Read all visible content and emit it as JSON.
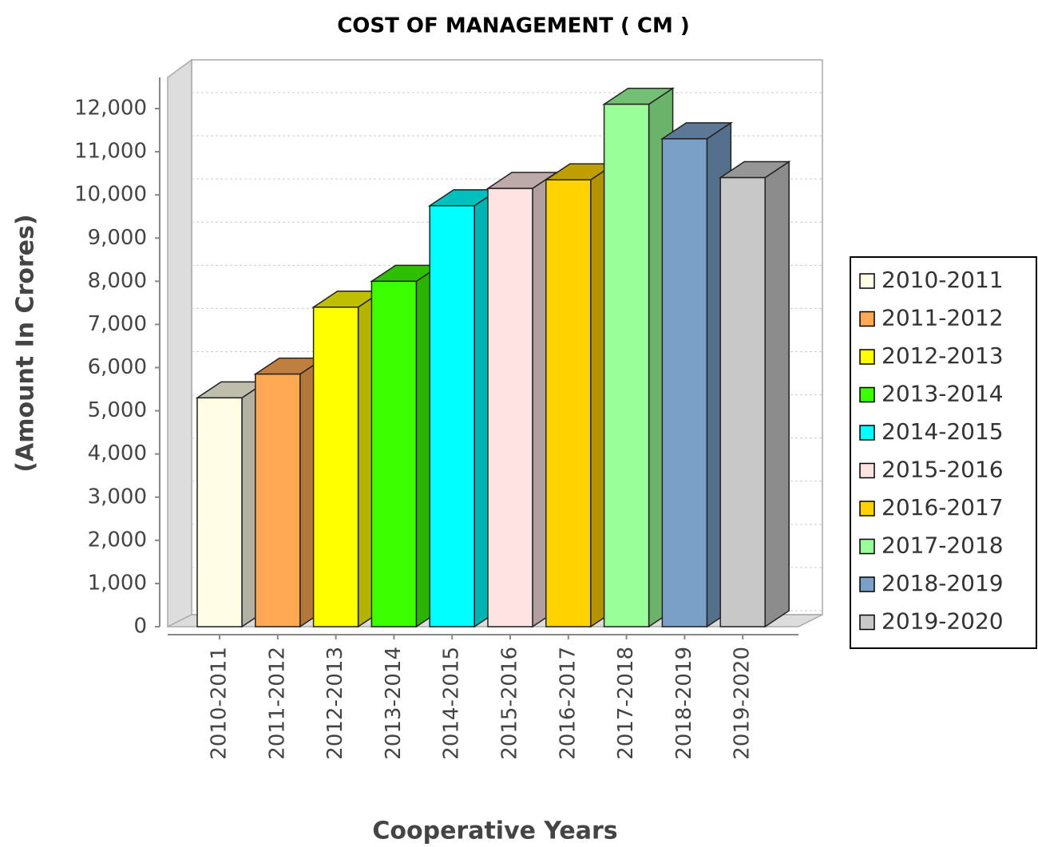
{
  "chart_data": {
    "type": "bar3d",
    "title": "COST OF MANAGEMENT ( CM )",
    "x_label": "Cooperative Years",
    "y_label": "(Amount In Crores)",
    "categories": [
      "2010-2011",
      "2011-2012",
      "2012-2013",
      "2013-2014",
      "2014-2015",
      "2015-2016",
      "2016-2017",
      "2017-2018",
      "2018-2019",
      "2019-2020"
    ],
    "values": [
      5300,
      5850,
      7400,
      8000,
      9750,
      10150,
      10350,
      12100,
      11300,
      10400
    ],
    "colors": [
      "#fffde6",
      "#ffa955",
      "#ffff00",
      "#3cff00",
      "#00ffff",
      "#ffe3e3",
      "#ffd200",
      "#99ff99",
      "#7aa0c8",
      "#c8c8c8"
    ],
    "ylim": [
      0,
      12000
    ],
    "yticks": [
      0,
      {
        "value": 1000,
        "label": "1,000"
      },
      {
        "value": 2000,
        "label": "2,000"
      },
      {
        "value": 3000,
        "label": "3,000"
      },
      {
        "value": 4000,
        "label": "4,000"
      },
      {
        "value": 5000,
        "label": "5,000"
      },
      {
        "value": 6000,
        "label": "6,000"
      },
      {
        "value": 7000,
        "label": "7,000"
      },
      {
        "value": 8000,
        "label": "8,000"
      },
      {
        "value": 9000,
        "label": "9,000"
      },
      {
        "value": 10000,
        "label": "10,000"
      },
      {
        "value": 11000,
        "label": "11,000"
      },
      {
        "value": 12000,
        "label": "12,000"
      }
    ],
    "grid": true,
    "legend": "right"
  }
}
